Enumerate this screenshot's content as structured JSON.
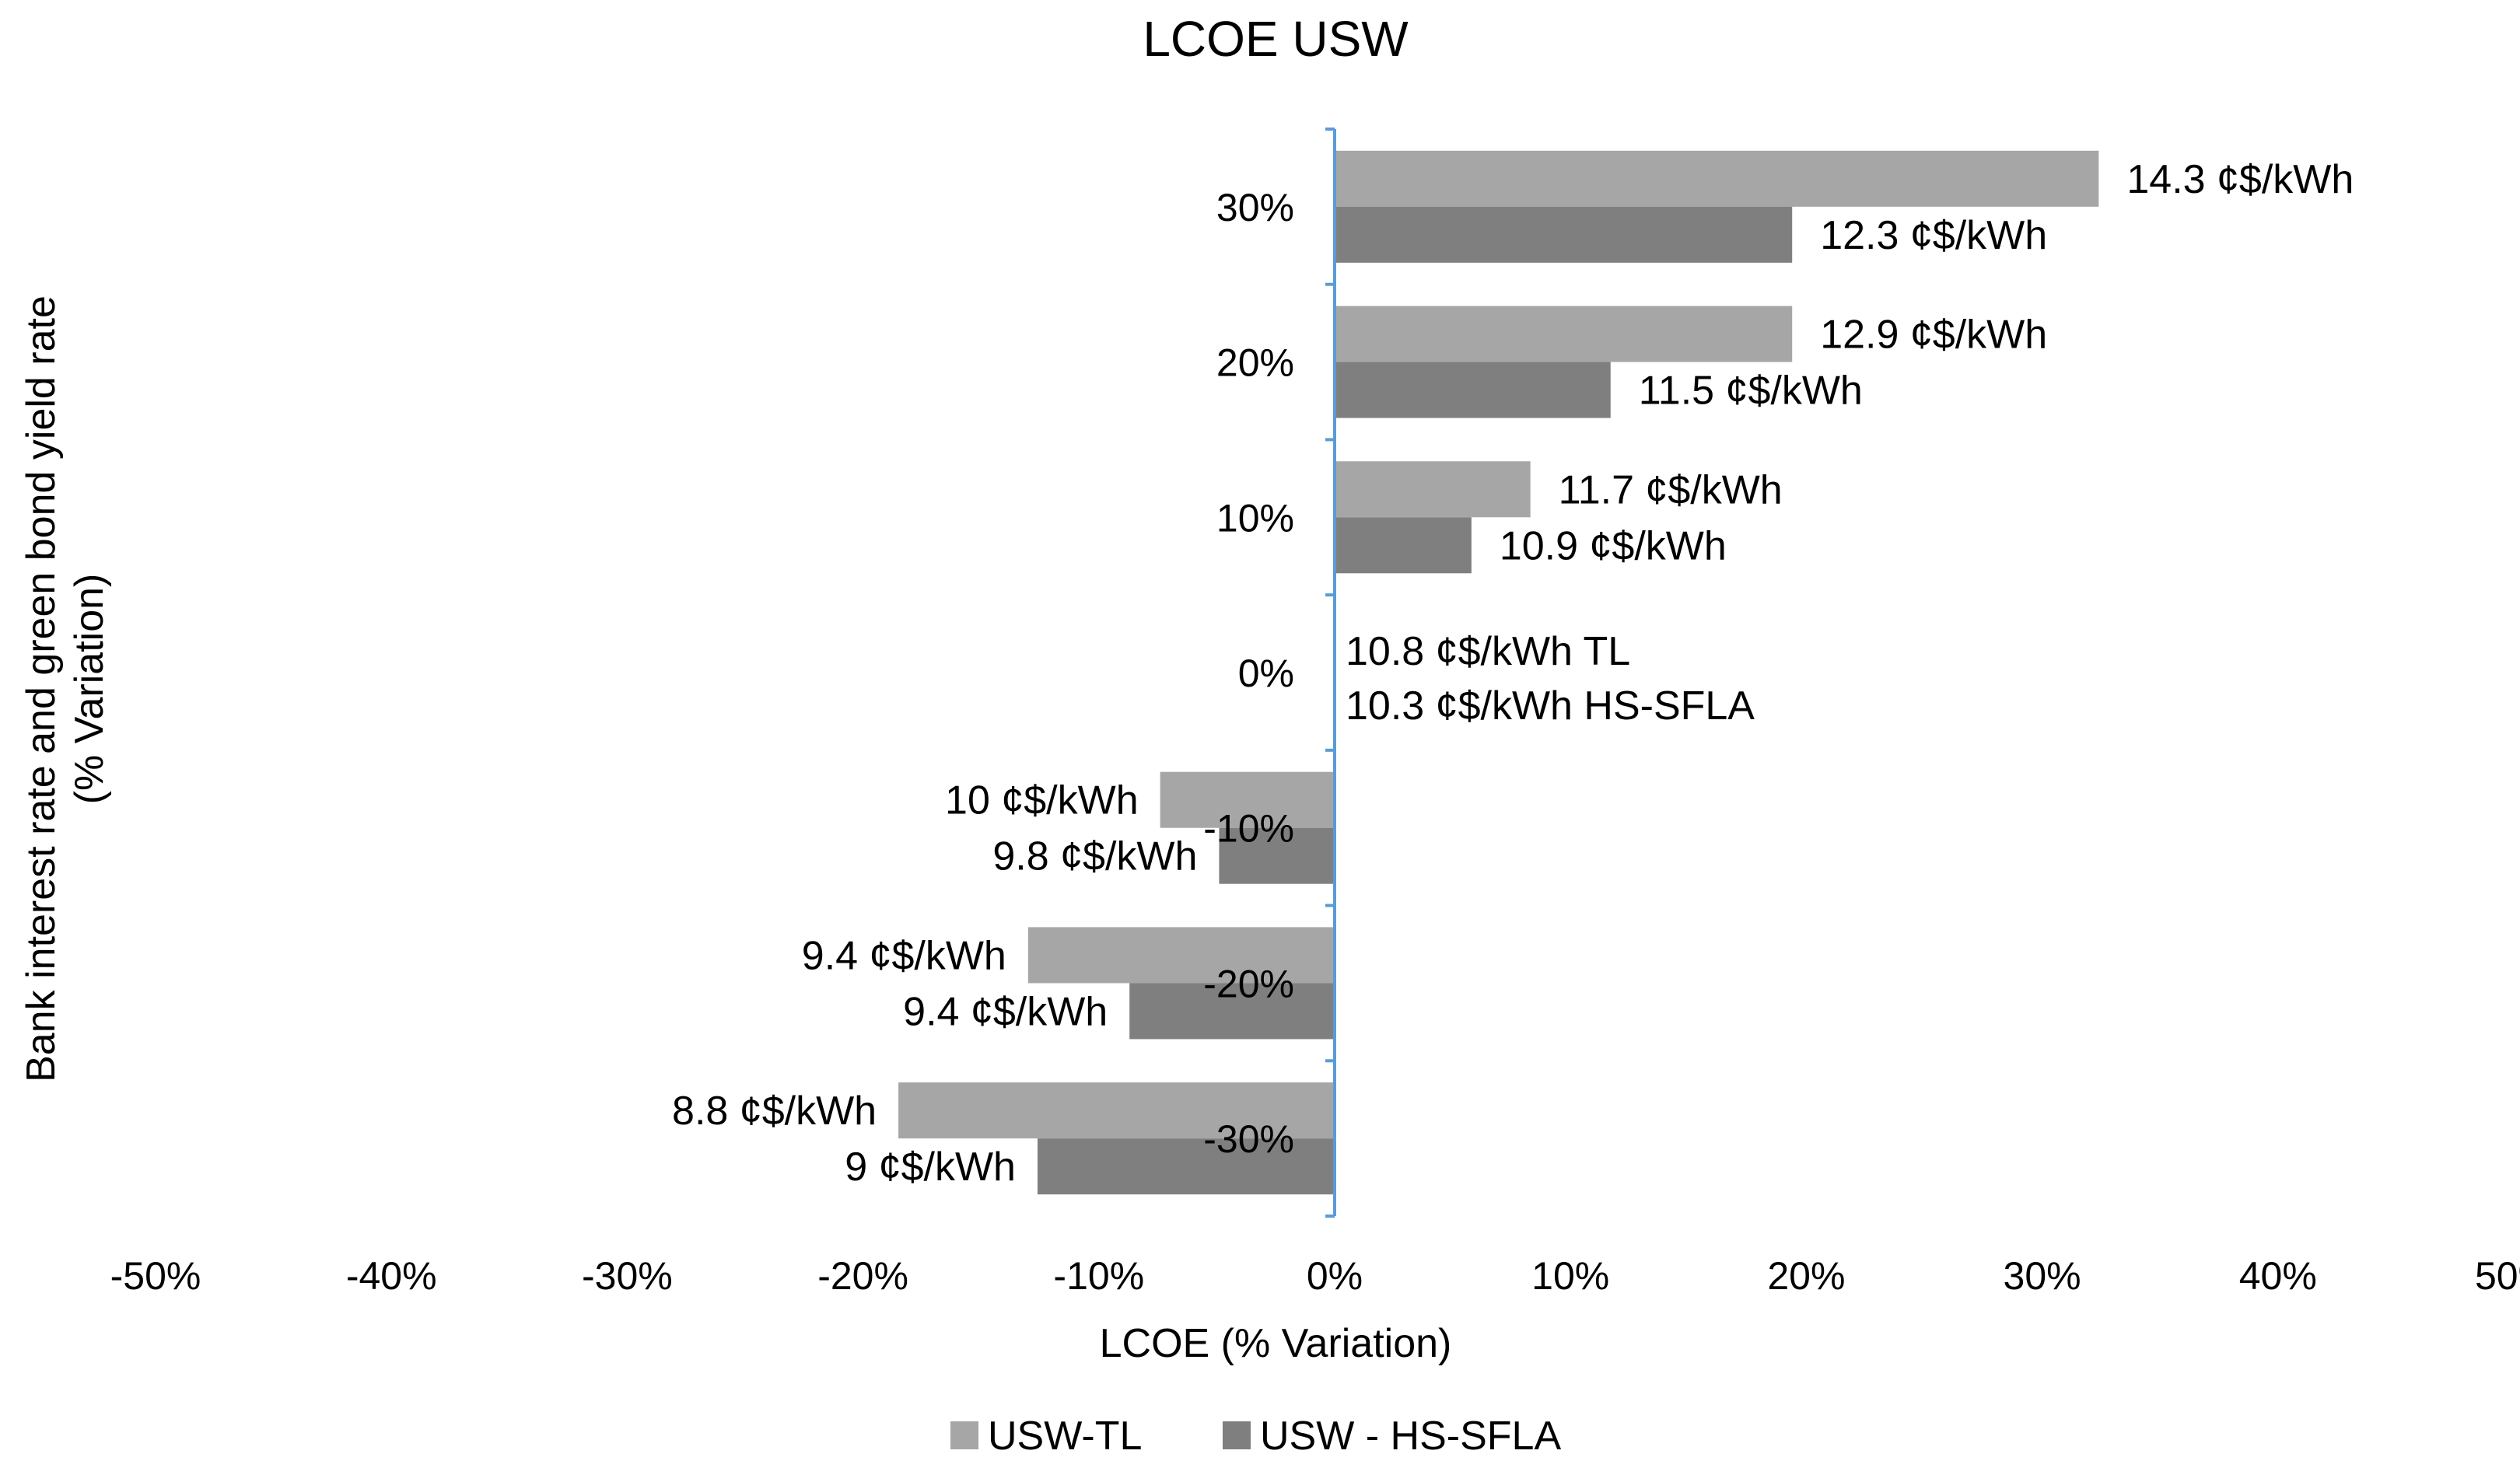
{
  "chart_data": {
    "type": "bar",
    "orientation": "horizontal",
    "title": "LCOE USW",
    "xlabel": "LCOE (% Variation)",
    "ylabel": "Bank interest rate and green bond yield rate (% Variation)",
    "ylabel_lines": [
      "Bank interest rate and green bond yield rate",
      "(% Variation)"
    ],
    "xlim": [
      -50,
      50
    ],
    "x_ticks": [
      -50,
      -40,
      -30,
      -20,
      -10,
      0,
      10,
      20,
      30,
      40,
      50
    ],
    "x_tick_labels": [
      "-50%",
      "-40%",
      "-30%",
      "-20%",
      "-10%",
      "0%",
      "10%",
      "20%",
      "30%",
      "40%",
      "50%"
    ],
    "categories": [
      "30%",
      "20%",
      "10%",
      "0%",
      "-10%",
      "-20%",
      "-30%"
    ],
    "series": [
      {
        "name": "USW-TL",
        "color": "#a6a6a6",
        "values": [
          32.4,
          19.4,
          8.3,
          0,
          -7.4,
          -13,
          -18.5
        ],
        "labels": [
          "14.3 ¢$/kWh",
          "12.9 ¢$/kWh",
          "11.7 ¢$/kWh",
          "",
          "10 ¢$/kWh",
          "9.4 ¢$/kWh",
          "8.8 ¢$/kWh"
        ]
      },
      {
        "name": "USW - HS-SFLA",
        "color": "#7f7f7f",
        "values": [
          19.4,
          11.7,
          5.8,
          0,
          -4.9,
          -8.7,
          -12.6
        ],
        "labels": [
          "12.3 ¢$/kWh",
          "11.5 ¢$/kWh",
          "10.9 ¢$/kWh",
          "",
          "9.8 ¢$/kWh",
          "9.4 ¢$/kWh",
          "9 ¢$/kWh"
        ]
      }
    ],
    "annotations": [
      "10.8 ¢$/kWh TL",
      "10.3 ¢$/kWh HS-SFLA"
    ],
    "legend": [
      "USW-TL",
      "USW - HS-SFLA"
    ],
    "legend_position": "bottom",
    "grid": false,
    "axis_color": "#5b9bd5"
  }
}
